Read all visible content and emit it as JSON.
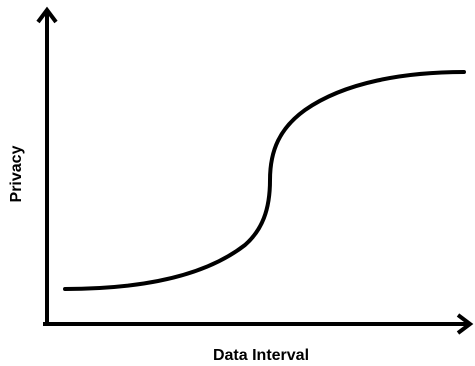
{
  "diagram": {
    "x_axis_label": "Data Interval",
    "y_axis_label": "Privacy",
    "curve_shape": "sigmoid",
    "colors": {
      "ink": "#000000",
      "background": "#ffffff"
    }
  }
}
